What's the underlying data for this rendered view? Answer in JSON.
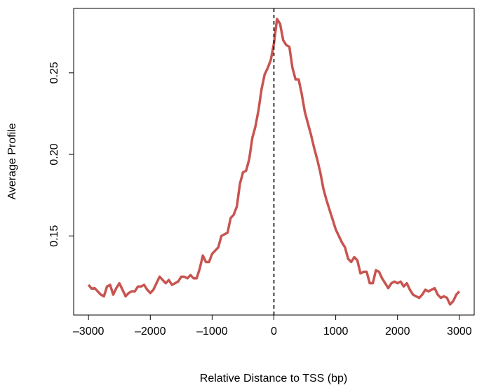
{
  "chart_data": {
    "type": "line",
    "xlabel": "Relative Distance to TSS (bp)",
    "ylabel": "Average Profile",
    "x": [
      -3000,
      -2950,
      -2900,
      -2850,
      -2800,
      -2750,
      -2700,
      -2650,
      -2600,
      -2550,
      -2500,
      -2450,
      -2400,
      -2350,
      -2300,
      -2250,
      -2200,
      -2150,
      -2100,
      -2050,
      -2000,
      -1950,
      -1900,
      -1850,
      -1800,
      -1750,
      -1700,
      -1650,
      -1600,
      -1550,
      -1500,
      -1450,
      -1400,
      -1350,
      -1300,
      -1250,
      -1200,
      -1150,
      -1100,
      -1050,
      -1000,
      -950,
      -900,
      -850,
      -800,
      -750,
      -700,
      -650,
      -600,
      -550,
      -500,
      -450,
      -400,
      -350,
      -300,
      -250,
      -200,
      -150,
      -100,
      -50,
      0,
      50,
      100,
      150,
      200,
      250,
      300,
      350,
      400,
      450,
      500,
      550,
      600,
      650,
      700,
      750,
      800,
      850,
      900,
      950,
      1000,
      1050,
      1100,
      1150,
      1200,
      1250,
      1300,
      1350,
      1400,
      1450,
      1500,
      1550,
      1600,
      1650,
      1700,
      1750,
      1800,
      1850,
      1900,
      1950,
      2000,
      2050,
      2100,
      2150,
      2200,
      2250,
      2300,
      2350,
      2400,
      2450,
      2500,
      2550,
      2600,
      2650,
      2700,
      2750,
      2800,
      2850,
      2900,
      2950,
      3000
    ],
    "series": [
      {
        "color": "#c85450",
        "values": [
          0.12,
          0.1177,
          0.118,
          0.116,
          0.114,
          0.113,
          0.119,
          0.12,
          0.114,
          0.118,
          0.121,
          0.117,
          0.113,
          0.115,
          0.116,
          0.116,
          0.119,
          0.119,
          0.12,
          0.117,
          0.115,
          0.117,
          0.121,
          0.125,
          0.123,
          0.121,
          0.123,
          0.12,
          0.121,
          0.122,
          0.125,
          0.125,
          0.124,
          0.126,
          0.124,
          0.124,
          0.13,
          0.138,
          0.134,
          0.134,
          0.139,
          0.141,
          0.143,
          0.15,
          0.151,
          0.152,
          0.161,
          0.163,
          0.168,
          0.182,
          0.189,
          0.19,
          0.197,
          0.21,
          0.217,
          0.227,
          0.24,
          0.249,
          0.253,
          0.258,
          0.268,
          0.283,
          0.28,
          0.27,
          0.267,
          0.266,
          0.253,
          0.246,
          0.246,
          0.237,
          0.226,
          0.219,
          0.212,
          0.204,
          0.197,
          0.189,
          0.179,
          0.172,
          0.166,
          0.16,
          0.154,
          0.15,
          0.146,
          0.143,
          0.136,
          0.134,
          0.137,
          0.135,
          0.127,
          0.128,
          0.128,
          0.121,
          0.121,
          0.129,
          0.128,
          0.124,
          0.121,
          0.118,
          0.121,
          0.122,
          0.121,
          0.122,
          0.119,
          0.121,
          0.117,
          0.114,
          0.113,
          0.112,
          0.114,
          0.117,
          0.116,
          0.117,
          0.118,
          0.114,
          0.112,
          0.113,
          0.112,
          0.108,
          0.11,
          0.114,
          0.116
        ]
      }
    ],
    "vlines": [
      0
    ],
    "xlim": [
      -3240,
      3240
    ],
    "xticks": [
      {
        "value": -3000,
        "label": "–3000"
      },
      {
        "value": -2000,
        "label": "–2000"
      },
      {
        "value": -1000,
        "label": "–1000"
      },
      0,
      1000,
      2000,
      3000
    ],
    "ylim": [
      0.1015,
      0.2895
    ],
    "yticks": [
      0.15,
      {
        "value": 0.2,
        "label": "0.20"
      },
      0.25
    ]
  }
}
